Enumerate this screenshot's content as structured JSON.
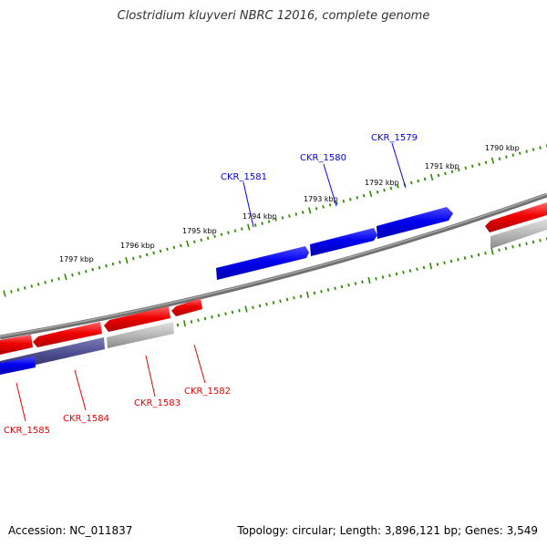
{
  "title": "Clostridium kluyveri NBRC 12016, complete genome",
  "footer": {
    "accession": "Accession: NC_011837",
    "stats": "Topology: circular; Length: 3,896,121 bp; Genes: 3,549"
  },
  "colors": {
    "forward_gene": "#0000ee",
    "reverse_gene": "#ee0000",
    "backbone": "#808080",
    "tick": "#2e8b00",
    "pseudo": "#b0b0b0",
    "overlap": "#4a4a8c"
  },
  "kbp_labels": [
    "1797 kbp",
    "1796 kbp",
    "1795 kbp",
    "1794 kbp",
    "1793 kbp",
    "1792 kbp",
    "1791 kbp",
    "1790 kbp"
  ],
  "forward_genes": [
    "CKR_1581",
    "CKR_1580",
    "CKR_1579"
  ],
  "reverse_genes": [
    "CKR_1585",
    "CKR_1584",
    "CKR_1583",
    "CKR_1582"
  ]
}
